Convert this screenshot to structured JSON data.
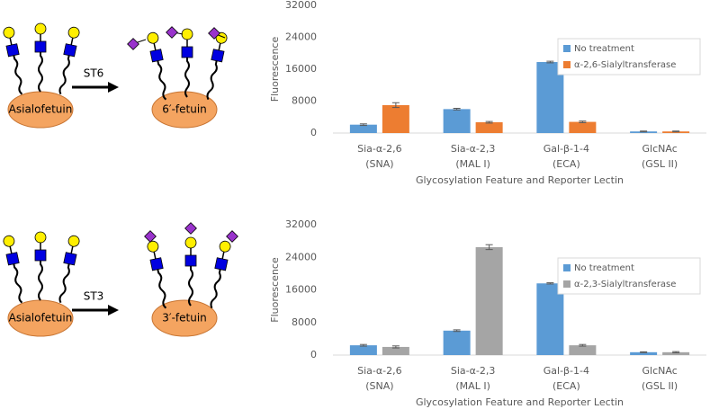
{
  "diagrams": [
    {
      "substrate": "Asialofetuin",
      "enzyme": "ST6",
      "product": "6′-fetuin"
    },
    {
      "substrate": "Asialofetuin",
      "enzyme": "ST3",
      "product": "3′-fetuin"
    }
  ],
  "chart_data": [
    {
      "type": "bar",
      "y_label": "Fluorescence",
      "x_label": "Glycosylation Feature and Reporter Lectin",
      "categories": [
        [
          "Sia-α-2,6",
          "(SNA)"
        ],
        [
          "Sia-α-2,3",
          "(MAL I)"
        ],
        [
          "Gal-β-1-4",
          "(ECA)"
        ],
        [
          "GlcNAc",
          "(GSL II)"
        ]
      ],
      "series": [
        {
          "name": "No treatment",
          "color": "#5b9bd5",
          "values": [
            2100,
            6000,
            17800,
            400
          ],
          "errors": [
            200,
            200,
            200,
            100
          ]
        },
        {
          "name": "α-2,6-Sialyltransferase",
          "color": "#ed7d31",
          "values": [
            7000,
            2700,
            2800,
            400
          ],
          "errors": [
            600,
            200,
            200,
            100
          ]
        }
      ],
      "ylim": [
        0,
        32000
      ],
      "yticks": [
        0,
        8000,
        16000,
        24000,
        32000
      ],
      "grid": false,
      "legend": "upper-right"
    },
    {
      "type": "bar",
      "y_label": "Fluorescence",
      "x_label": "Glycosylation Feature and Reporter Lectin",
      "categories": [
        [
          "Sia-α-2,6",
          "(SNA)"
        ],
        [
          "Sia-α-2,3",
          "(MAL I)"
        ],
        [
          "Gal-β-1-4",
          "(ECA)"
        ],
        [
          "GlcNAc",
          "(GSL II)"
        ]
      ],
      "series": [
        {
          "name": "No treatment",
          "color": "#5b9bd5",
          "values": [
            2400,
            6000,
            17600,
            700
          ],
          "errors": [
            200,
            200,
            150,
            100
          ]
        },
        {
          "name": "α-2,3-Sialyltransferase",
          "color": "#a5a5a5",
          "values": [
            2000,
            26500,
            2400,
            700
          ],
          "errors": [
            250,
            600,
            200,
            150
          ]
        }
      ],
      "ylim": [
        0,
        32000
      ],
      "yticks": [
        0,
        8000,
        16000,
        24000,
        32000
      ],
      "grid": false,
      "legend": "upper-right"
    }
  ]
}
